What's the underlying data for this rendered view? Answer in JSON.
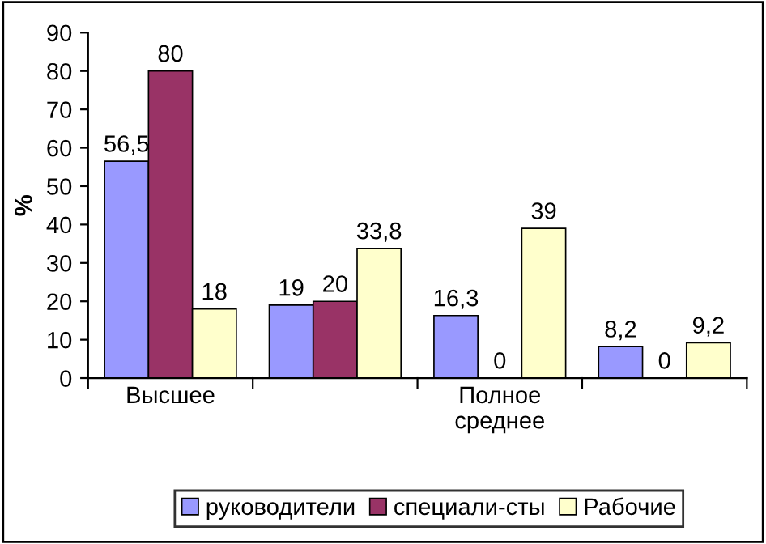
{
  "chart_data": {
    "type": "bar",
    "ylabel": "%",
    "categories": [
      "Высшее",
      null,
      "Полное\nсреднее",
      null
    ],
    "series": [
      {
        "name": "руководители",
        "color": "#9999ff",
        "values": [
          56.5,
          19,
          16.3,
          8.2
        ],
        "value_labels": [
          "56,5",
          "19",
          "16,3",
          "8,2"
        ]
      },
      {
        "name": "специали-сты",
        "color": "#993366",
        "values": [
          80,
          20,
          0,
          0
        ],
        "value_labels": [
          "80",
          "20",
          "0",
          "0"
        ]
      },
      {
        "name": "Рабочие",
        "color": "#ffffcc",
        "values": [
          18,
          33.8,
          39,
          9.2
        ],
        "value_labels": [
          "18",
          "33,8",
          "39",
          "9,2"
        ]
      }
    ],
    "ylim": [
      0,
      90
    ],
    "yticks": [
      0,
      10,
      20,
      30,
      40,
      50,
      60,
      70,
      80,
      90
    ],
    "grid": false,
    "legend": "bottom"
  }
}
